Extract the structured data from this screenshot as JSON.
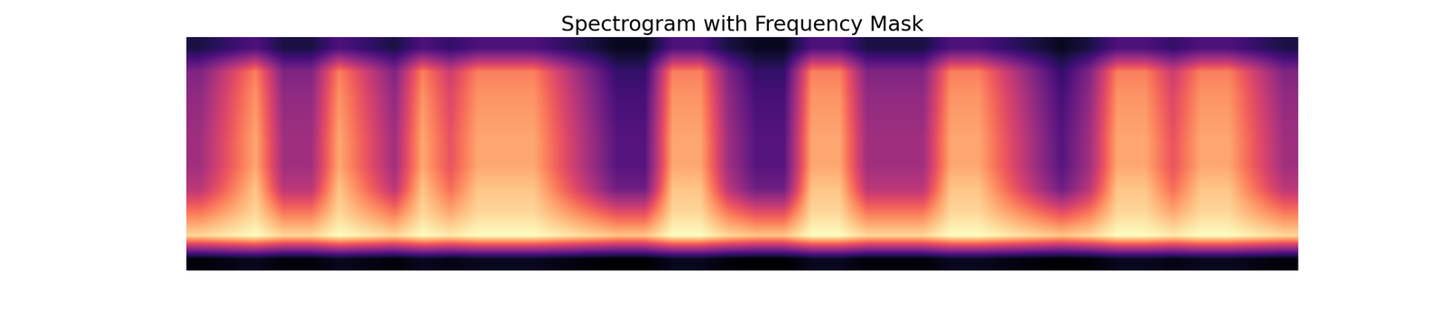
{
  "chart_data": {
    "type": "heatmap",
    "title": "Spectrogram with Frequency Mask",
    "tick_labels": false,
    "cells": [
      [
        36,
        37,
        38,
        36,
        36,
        38,
        37,
        36,
        38,
        37,
        38,
        38,
        38,
        37,
        36,
        35,
        35,
        38,
        38,
        36,
        35,
        35,
        38,
        38,
        36,
        36,
        36,
        38,
        38,
        37,
        36,
        35,
        36,
        38,
        38,
        37,
        38,
        38,
        37,
        36
      ],
      [
        80,
        82,
        84,
        80,
        80,
        84,
        82,
        80,
        84,
        82,
        84,
        84,
        84,
        82,
        80,
        78,
        78,
        84,
        84,
        80,
        78,
        78,
        84,
        84,
        80,
        80,
        80,
        84,
        84,
        82,
        80,
        78,
        80,
        84,
        84,
        82,
        84,
        84,
        82,
        80
      ],
      [
        70,
        75,
        80,
        70,
        70,
        80,
        75,
        70,
        80,
        75,
        80,
        80,
        80,
        75,
        70,
        65,
        65,
        80,
        80,
        70,
        65,
        65,
        80,
        80,
        70,
        70,
        70,
        80,
        80,
        75,
        70,
        65,
        70,
        80,
        80,
        75,
        80,
        80,
        75,
        70
      ],
      [
        60,
        69,
        78,
        60,
        60,
        78,
        69,
        60,
        78,
        69,
        78,
        78,
        78,
        69,
        60,
        51,
        51,
        78,
        78,
        60,
        51,
        51,
        78,
        78,
        60,
        60,
        60,
        78,
        78,
        69,
        60,
        51,
        60,
        78,
        78,
        69,
        78,
        78,
        69,
        60
      ],
      [
        57,
        66,
        75,
        57,
        57,
        75,
        66,
        57,
        75,
        66,
        75,
        75,
        75,
        66,
        57,
        48,
        48,
        75,
        75,
        57,
        48,
        48,
        75,
        75,
        57,
        57,
        57,
        75,
        75,
        66,
        57,
        48,
        57,
        75,
        75,
        66,
        75,
        75,
        66,
        57
      ],
      [
        57,
        66,
        75,
        57,
        57,
        75,
        66,
        57,
        75,
        66,
        75,
        75,
        75,
        66,
        57,
        48,
        48,
        75,
        75,
        57,
        48,
        48,
        75,
        75,
        57,
        57,
        57,
        75,
        75,
        66,
        57,
        48,
        57,
        75,
        75,
        66,
        75,
        75,
        66,
        57
      ],
      [
        56,
        65,
        74,
        56,
        56,
        74,
        65,
        56,
        74,
        65,
        74,
        74,
        74,
        65,
        56,
        47,
        47,
        74,
        74,
        56,
        47,
        47,
        74,
        74,
        56,
        56,
        56,
        74,
        74,
        65,
        56,
        47,
        56,
        74,
        74,
        65,
        74,
        74,
        65,
        56
      ],
      [
        55,
        64,
        73,
        55,
        55,
        73,
        64,
        55,
        73,
        64,
        73,
        73,
        73,
        64,
        55,
        46,
        46,
        73,
        73,
        55,
        46,
        46,
        73,
        73,
        55,
        55,
        55,
        73,
        73,
        64,
        55,
        46,
        55,
        73,
        73,
        64,
        73,
        73,
        64,
        55
      ],
      [
        53,
        62,
        71,
        53,
        53,
        71,
        62,
        53,
        71,
        62,
        71,
        71,
        71,
        62,
        53,
        44,
        44,
        71,
        71,
        53,
        44,
        44,
        71,
        71,
        53,
        53,
        53,
        71,
        71,
        62,
        53,
        44,
        53,
        71,
        71,
        62,
        71,
        71,
        62,
        53
      ],
      [
        41,
        44,
        47,
        41,
        41,
        47,
        44,
        41,
        47,
        44,
        47,
        47,
        47,
        44,
        41,
        38,
        38,
        47,
        47,
        41,
        38,
        38,
        47,
        47,
        41,
        41,
        41,
        47,
        47,
        44,
        41,
        38,
        41,
        47,
        47,
        44,
        47,
        47,
        44,
        41
      ]
    ]
  }
}
